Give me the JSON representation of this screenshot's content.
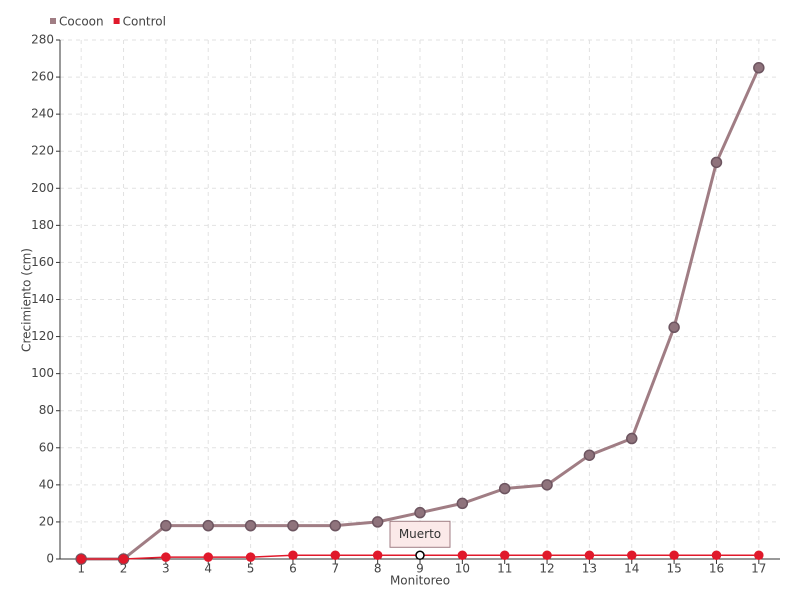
{
  "chart_data": {
    "type": "line",
    "x_label": "Monitoreo",
    "y_label": "Crecimiento (cm)",
    "categories": [
      "1",
      "2",
      "3",
      "4",
      "5",
      "6",
      "7",
      "8",
      "9",
      "10",
      "11",
      "12",
      "13",
      "14",
      "15",
      "16",
      "17"
    ],
    "series": [
      {
        "name": "Cocoon",
        "color": "#a07d84",
        "values": [
          0,
          0,
          18,
          18,
          18,
          18,
          18,
          20,
          25,
          30,
          38,
          40,
          56,
          65,
          125,
          214,
          265
        ]
      },
      {
        "name": "Control",
        "color": "#e0192b",
        "values": [
          0,
          0,
          1,
          1,
          1,
          2,
          2,
          2,
          2,
          2,
          2,
          2,
          2,
          2,
          2,
          2,
          2
        ]
      }
    ],
    "ylim": [
      0,
      280
    ],
    "yticks": [
      0,
      20,
      40,
      60,
      80,
      100,
      120,
      140,
      160,
      180,
      200,
      220,
      240,
      260,
      280
    ],
    "grid": true,
    "legend": "top-left",
    "annotation": {
      "text": "Muerto",
      "series": "Control",
      "category": "9"
    }
  }
}
